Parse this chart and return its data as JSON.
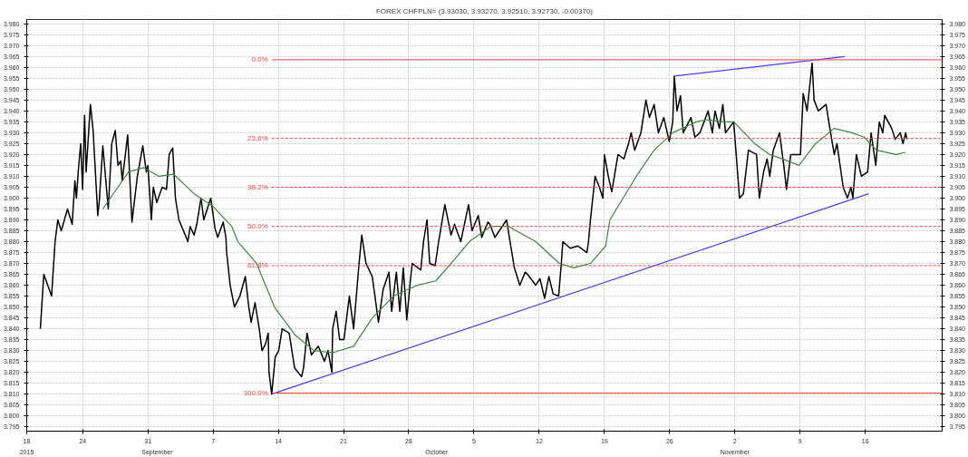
{
  "chart_data": {
    "type": "line",
    "title": "FOREX CHFPLN= (3.93030, 3.93270, 3.92510, 3.92730, -0.00370)",
    "grid": true,
    "xlim": [
      "2015-08-18",
      "2015-11-24T06:00"
    ],
    "xticks": [
      {
        "value": "2015-08-18",
        "label": "18"
      },
      {
        "value": "2015-08-24",
        "label": "24"
      },
      {
        "value": "2015-08-31",
        "label": "31"
      },
      {
        "value": "2015-09-07",
        "label": "7"
      },
      {
        "value": "2015-09-14",
        "label": "14"
      },
      {
        "value": "2015-09-21",
        "label": "21"
      },
      {
        "value": "2015-09-28",
        "label": "28"
      },
      {
        "value": "2015-10-05",
        "label": "5"
      },
      {
        "value": "2015-10-12",
        "label": "12"
      },
      {
        "value": "2015-10-19",
        "label": "19"
      },
      {
        "value": "2015-10-26",
        "label": "26"
      },
      {
        "value": "2015-11-02",
        "label": "2"
      },
      {
        "value": "2015-11-09",
        "label": "9"
      },
      {
        "value": "2015-11-16",
        "label": "16"
      }
    ],
    "x2lim": [
      "2015-08-18",
      "2015-11-24T06:00"
    ],
    "x2ticks": [
      {
        "value": "2015-08-18",
        "label": "2015"
      },
      {
        "value": "2015-09-01",
        "label": "September"
      },
      {
        "value": "2015-10-01",
        "label": "October"
      },
      {
        "value": "2015-11-02",
        "label": "November"
      }
    ],
    "ylim": [
      3.793,
      3.982
    ],
    "yticks": [
      3.795,
      {
        "value": 3.8,
        "label": "3.800"
      },
      3.805,
      {
        "value": 3.81,
        "label": "3.810"
      },
      3.815,
      {
        "value": 3.82,
        "label": "3.820"
      },
      3.825,
      {
        "value": 3.83,
        "label": "3.830"
      },
      3.835,
      {
        "value": 3.84,
        "label": "3.840"
      },
      3.845,
      {
        "value": 3.85,
        "label": "3.850"
      },
      3.855,
      {
        "value": 3.86,
        "label": "3.860"
      },
      3.865,
      {
        "value": 3.87,
        "label": "3.870"
      },
      3.875,
      {
        "value": 3.88,
        "label": "3.880"
      },
      3.885,
      {
        "value": 3.89,
        "label": "3.890"
      },
      3.895,
      {
        "value": 3.9,
        "label": "3.900"
      },
      3.905,
      {
        "value": 3.91,
        "label": "3.910"
      },
      3.915,
      {
        "value": 3.92,
        "label": "3.920"
      },
      3.925,
      {
        "value": 3.93,
        "label": "3.930"
      },
      3.935,
      {
        "value": 3.94,
        "label": "3.940"
      },
      3.945,
      {
        "value": 3.95,
        "label": "3.950"
      },
      3.955,
      {
        "value": 3.96,
        "label": "3.960"
      },
      3.965,
      {
        "value": 3.97,
        "label": "3.970"
      },
      3.975,
      {
        "value": 3.98,
        "label": "3.980"
      }
    ],
    "y2lim": [
      3.793,
      3.982
    ],
    "y2ticks": [
      3.795,
      {
        "value": 3.8,
        "label": "3.800"
      },
      3.805,
      {
        "value": 3.81,
        "label": "3.810"
      },
      3.815,
      {
        "value": 3.82,
        "label": "3.820"
      },
      3.825,
      {
        "value": 3.83,
        "label": "3.830"
      },
      3.835,
      {
        "value": 3.84,
        "label": "3.840"
      },
      3.845,
      {
        "value": 3.85,
        "label": "3.850"
      },
      3.855,
      {
        "value": 3.86,
        "label": "3.860"
      },
      3.865,
      {
        "value": 3.87,
        "label": "3.870"
      },
      3.875,
      {
        "value": 3.88,
        "label": "3.880"
      },
      3.885,
      {
        "value": 3.89,
        "label": "3.890"
      },
      3.895,
      {
        "value": 3.9,
        "label": "3.900"
      },
      3.905,
      {
        "value": 3.91,
        "label": "3.910"
      },
      3.915,
      {
        "value": 3.92,
        "label": "3.920"
      },
      3.925,
      {
        "value": 3.93,
        "label": "3.930"
      },
      3.935,
      {
        "value": 3.94,
        "label": "3.940"
      },
      3.945,
      {
        "value": 3.95,
        "label": "3.950"
      },
      3.955,
      {
        "value": 3.96,
        "label": "3.960"
      },
      3.965,
      {
        "value": 3.97,
        "label": "3.970"
      },
      3.975,
      {
        "value": 3.98,
        "label": "3.980"
      }
    ],
    "series": [
      {
        "color": "#000000",
        "x": [
          "2015-08-19T11:00",
          "2015-08-19T20:00",
          "2015-08-20T16:00",
          "2015-08-21T01:00",
          "2015-08-21T08:00",
          "2015-08-21T17:00",
          "2015-08-22T09:00",
          "2015-08-22T21:00",
          "2015-08-23T04:00",
          "2015-08-23T08:00",
          "2015-08-23T13:00",
          "2015-08-23T19:00",
          "2015-08-24T00:00",
          "2015-08-24T05:00",
          "2015-08-24T09:00",
          "2015-08-24T20:00",
          "2015-08-25T03:00",
          "2015-08-25T15:00",
          "2015-08-25T19:00",
          "2015-08-26T04:00",
          "2015-08-26T18:00",
          "2015-08-27T03:00",
          "2015-08-27T12:00",
          "2015-08-27T19:00",
          "2015-08-28T02:00",
          "2015-08-28T06:00",
          "2015-08-28T20:00",
          "2015-08-29T07:00",
          "2015-08-29T21:00",
          "2015-08-30T11:00",
          "2015-08-30T20:00",
          "2015-08-31T00:00",
          "2015-08-31T09:00",
          "2015-08-31T14:00",
          "2015-08-31T23:00",
          "2015-09-01T13:00",
          "2015-09-02T00:00",
          "2015-09-02T07:00",
          "2015-09-02T16:00",
          "2015-09-02T23:00",
          "2015-09-03T08:00",
          "2015-09-03T22:00",
          "2015-09-04T07:00",
          "2015-09-04T13:00",
          "2015-09-04T23:00",
          "2015-09-05T06:00",
          "2015-09-05T17:00",
          "2015-09-06T00:00",
          "2015-09-06T18:00",
          "2015-09-07T05:00",
          "2015-09-07T12:00",
          "2015-09-08T02:00",
          "2015-09-08T09:00",
          "2015-09-08T11:00",
          "2015-09-08T20:00",
          "2015-09-09T07:00",
          "2015-09-09T21:00",
          "2015-09-10T11:00",
          "2015-09-10T20:00",
          "2015-09-11T02:00",
          "2015-09-11T12:00",
          "2015-09-11T23:00",
          "2015-09-12T06:00",
          "2015-09-12T15:00",
          "2015-09-12T22:00",
          "2015-09-13T00:00",
          "2015-09-13T07:00",
          "2015-09-13T16:00",
          "2015-09-14T01:00",
          "2015-09-14T10:00",
          "2015-09-15T04:00",
          "2015-09-15T18:00",
          "2015-09-16T12:00",
          "2015-09-16T17:00",
          "2015-09-17T02:00",
          "2015-09-17T13:00",
          "2015-09-18T07:00",
          "2015-09-18T23:00",
          "2015-09-19T08:00",
          "2015-09-19T18:00",
          "2015-09-19T20:00",
          "2015-09-20T05:00",
          "2015-09-20T14:00",
          "2015-09-21T01:00",
          "2015-09-21T15:00",
          "2015-09-22T02:00",
          "2015-09-22T16:00",
          "2015-09-22T23:00",
          "2015-09-23T10:00",
          "2015-09-24T02:00",
          "2015-09-24T18:00",
          "2015-09-25T06:00",
          "2015-09-25T21:00",
          "2015-09-26T04:00",
          "2015-09-26T16:00",
          "2015-09-27T01:00",
          "2015-09-27T10:00",
          "2015-09-27T19:00",
          "2015-09-28T04:00",
          "2015-09-28T09:00",
          "2015-09-29T07:00",
          "2015-09-29T14:00",
          "2015-09-29T23:00",
          "2015-09-30T06:00",
          "2015-09-30T20:00",
          "2015-10-01T05:00",
          "2015-10-01T21:00",
          "2015-10-02T13:00",
          "2015-10-02T22:00",
          "2015-10-03T14:00",
          "2015-10-04T10:00",
          "2015-10-04T19:00",
          "2015-10-05T11:00",
          "2015-10-05T20:00",
          "2015-10-06T12:00",
          "2015-10-06T17:00",
          "2015-10-07T06:00",
          "2015-10-08T12:00",
          "2015-10-08T21:00",
          "2015-10-09T08:00",
          "2015-10-09T22:00",
          "2015-10-10T12:00",
          "2015-10-10T18:00",
          "2015-10-11T15:00",
          "2015-10-12T02:00",
          "2015-10-12T14:00",
          "2015-10-13T01:00",
          "2015-10-13T12:00",
          "2015-10-14T02:00",
          "2015-10-14T09:00",
          "2015-10-14T13:00",
          "2015-10-15T08:00",
          "2015-10-16T04:00",
          "2015-10-17T03:00",
          "2015-10-17T07:00",
          "2015-10-17T12:00",
          "2015-10-18T00:00",
          "2015-10-18T11:00",
          "2015-10-18T20:00",
          "2015-10-19T00:00",
          "2015-10-19T10:00",
          "2015-10-19T19:00",
          "2015-10-20T11:00",
          "2015-10-21T02:00",
          "2015-10-21T14:00",
          "2015-10-21T21:00",
          "2015-10-22T06:00",
          "2015-10-22T22:00",
          "2015-10-23T11:00",
          "2015-10-23T20:00",
          "2015-10-24T08:00",
          "2015-10-24T19:00",
          "2015-10-25T09:00",
          "2015-10-25T23:00",
          "2015-10-26T08:00",
          "2015-10-26T12:00",
          "2015-10-26T19:00",
          "2015-10-27T04:00",
          "2015-10-27T11:00",
          "2015-10-28T07:00",
          "2015-10-28T17:00",
          "2015-10-29T06:00",
          "2015-10-30T03:00",
          "2015-10-30T14:00",
          "2015-10-30T21:00",
          "2015-10-31T08:00",
          "2015-10-31T17:00",
          "2015-11-01T00:00",
          "2015-11-01T21:00",
          "2015-11-02T12:00",
          "2015-11-02T22:00",
          "2015-11-03T11:00",
          "2015-11-04T08:00",
          "2015-11-04T15:00",
          "2015-11-05T02:00",
          "2015-11-05T11:00",
          "2015-11-05T18:00",
          "2015-11-06T03:00",
          "2015-11-06T19:00",
          "2015-11-07T06:00",
          "2015-11-07T13:00",
          "2015-11-08T00:00",
          "2015-11-09T01:00",
          "2015-11-09T08:00",
          "2015-11-09T18:00",
          "2015-11-10T07:00",
          "2015-11-10T12:00",
          "2015-11-10T23:00",
          "2015-11-11T19:00",
          "2015-11-12T02:00",
          "2015-11-12T16:00",
          "2015-11-12T23:00",
          "2015-11-13T15:00",
          "2015-11-14T02:00",
          "2015-11-14T11:00",
          "2015-11-14T16:00",
          "2015-11-15T01:00",
          "2015-11-15T14:00",
          "2015-11-16T06:00",
          "2015-11-16T15:00",
          "2015-11-17T03:00",
          "2015-11-17T12:00",
          "2015-11-17T21:00",
          "2015-11-18T02:00",
          "2015-11-18T20:00",
          "2015-11-19T05:00",
          "2015-11-19T18:00",
          "2015-11-20T01:00",
          "2015-11-20T08:00",
          "2015-11-20T11:00"
        ],
        "values": [
          3.84,
          3.865,
          3.855,
          3.88,
          3.89,
          3.885,
          3.895,
          3.888,
          3.908,
          3.9,
          3.913,
          3.925,
          3.904,
          3.938,
          3.912,
          3.943,
          3.931,
          3.892,
          3.899,
          3.924,
          3.895,
          3.925,
          3.931,
          3.915,
          3.917,
          3.908,
          3.929,
          3.889,
          3.91,
          3.924,
          3.912,
          3.915,
          3.89,
          3.905,
          3.898,
          3.905,
          3.904,
          3.92,
          3.923,
          3.9,
          3.89,
          3.884,
          3.88,
          3.887,
          3.883,
          3.888,
          3.9,
          3.89,
          3.9,
          3.886,
          3.882,
          3.889,
          3.882,
          3.875,
          3.86,
          3.85,
          3.855,
          3.864,
          3.85,
          3.843,
          3.852,
          3.84,
          3.83,
          3.833,
          3.838,
          3.82,
          3.81,
          3.827,
          3.83,
          3.84,
          3.838,
          3.822,
          3.818,
          3.822,
          3.838,
          3.828,
          3.832,
          3.825,
          3.83,
          3.82,
          3.84,
          3.848,
          3.835,
          3.835,
          3.855,
          3.84,
          3.87,
          3.883,
          3.87,
          3.864,
          3.843,
          3.858,
          3.866,
          3.848,
          3.866,
          3.848,
          3.868,
          3.844,
          3.862,
          3.87,
          3.867,
          3.88,
          3.89,
          3.87,
          3.869,
          3.88,
          3.897,
          3.883,
          3.888,
          3.88,
          3.897,
          3.885,
          3.892,
          3.882,
          3.889,
          3.888,
          3.882,
          3.89,
          3.88,
          3.868,
          3.86,
          3.866,
          3.865,
          3.86,
          3.863,
          3.854,
          3.864,
          3.856,
          3.855,
          3.87,
          3.88,
          3.877,
          3.878,
          3.875,
          3.88,
          3.89,
          3.91,
          3.905,
          3.9,
          3.92,
          3.91,
          3.903,
          3.92,
          3.918,
          3.925,
          3.93,
          3.922,
          3.93,
          3.945,
          3.937,
          3.943,
          3.93,
          3.937,
          3.926,
          3.935,
          3.956,
          3.94,
          3.947,
          3.93,
          3.937,
          3.928,
          3.93,
          3.94,
          3.93,
          3.94,
          3.932,
          3.943,
          3.93,
          3.935,
          3.9,
          3.902,
          3.922,
          3.92,
          3.9,
          3.912,
          3.918,
          3.91,
          3.922,
          3.93,
          3.915,
          3.904,
          3.92,
          3.92,
          3.948,
          3.94,
          3.962,
          3.945,
          3.94,
          3.943,
          3.935,
          3.92,
          3.925,
          3.905,
          3.9,
          3.905,
          3.9,
          3.92,
          3.91,
          3.912,
          3.93,
          3.915,
          3.935,
          3.93,
          3.938,
          3.932,
          3.927,
          3.93,
          3.925,
          3.93,
          3.927
        ]
      },
      {
        "color": "#3a8a3a",
        "x": [
          "2015-08-26T04:00",
          "2015-08-28T22:00",
          "2015-08-30T13:00",
          "2015-09-01T04:00",
          "2015-09-02T18:00",
          "2015-09-04T23:00",
          "2015-09-07T01:00",
          "2015-09-09T00:00",
          "2015-09-09T16:00",
          "2015-09-11T16:00",
          "2015-09-13T14:00",
          "2015-09-15T20:00",
          "2015-09-17T20:00",
          "2015-09-19T20:00",
          "2015-09-22T02:00",
          "2015-09-24T02:00",
          "2015-09-26T09:00",
          "2015-09-28T22:00",
          "2015-09-30T22:00",
          "2015-10-02T13:00",
          "2015-10-04T12:00",
          "2015-10-06T19:00",
          "2015-10-08T17:00",
          "2015-10-11T15:00",
          "2015-10-14T04:00",
          "2015-10-15T17:00",
          "2015-10-17T12:00",
          "2015-10-19T03:00",
          "2015-10-19T14:00",
          "2015-10-22T10:00",
          "2015-10-24T08:00",
          "2015-10-26T08:00",
          "2015-10-28T21:00",
          "2015-10-29T22:00",
          "2015-10-31T22:00",
          "2015-11-01T21:00",
          "2015-11-04T03:00",
          "2015-11-05T18:00",
          "2015-11-07T18:00",
          "2015-11-08T21:00",
          "2015-11-10T16:00",
          "2015-11-12T16:00",
          "2015-11-14T13:00",
          "2015-11-15T21:00",
          "2015-11-17T05:00",
          "2015-11-19T07:00",
          "2015-11-20T08:00"
        ],
        "values": [
          3.895,
          3.912,
          3.914,
          3.91,
          3.911,
          3.902,
          3.896,
          3.887,
          3.88,
          3.87,
          3.85,
          3.837,
          3.83,
          3.829,
          3.832,
          3.845,
          3.855,
          3.86,
          3.862,
          3.87,
          3.88,
          3.887,
          3.887,
          3.88,
          3.87,
          3.868,
          3.87,
          3.878,
          3.89,
          3.91,
          3.922,
          3.93,
          3.935,
          3.936,
          3.935,
          3.935,
          3.925,
          3.92,
          3.917,
          3.915,
          3.925,
          3.932,
          3.93,
          3.928,
          3.922,
          3.92,
          3.921
        ]
      },
      {
        "color": "#4040ff",
        "x": [
          "2015-09-13T07:00",
          "2015-11-16T09:00"
        ],
        "values": [
          3.81,
          3.902
        ]
      },
      {
        "color": "#4040ff",
        "x": [
          "2015-10-26T12:00",
          "2015-11-13T19:00"
        ],
        "values": [
          3.956,
          3.965
        ]
      }
    ],
    "ref_lines": [
      {
        "axis": "y",
        "value": 3.9635,
        "color": "#ff4040",
        "line_style": "solid"
      },
      {
        "axis": "y",
        "value": 3.9274,
        "color": "#ff4040",
        "line_style": "dashed"
      },
      {
        "axis": "y",
        "value": 3.905,
        "color": "#ff4040",
        "line_style": "dashed"
      },
      {
        "axis": "y",
        "value": 3.887,
        "color": "#ff4040",
        "line_style": "dashed"
      },
      {
        "axis": "y",
        "value": 3.869,
        "color": "#ff4040",
        "line_style": "dashed"
      },
      {
        "axis": "y",
        "value": 3.8105,
        "color": "#ff4040",
        "line_style": "solid"
      }
    ],
    "annotations": [
      {
        "text": "0.0%",
        "x": "2015-09-13T07:00",
        "y": 3.9635
      },
      {
        "text": "23.6%",
        "x": "2015-09-13T07:00",
        "y": 3.9274
      },
      {
        "text": "38.2%",
        "x": "2015-09-13T07:00",
        "y": 3.905
      },
      {
        "text": "50.0%",
        "x": "2015-09-13T07:00",
        "y": 3.887
      },
      {
        "text": "61.8%",
        "x": "2015-09-13T07:00",
        "y": 3.869
      },
      {
        "text": "100.0%",
        "x": "2015-09-13T07:00",
        "y": 3.8105
      }
    ]
  }
}
